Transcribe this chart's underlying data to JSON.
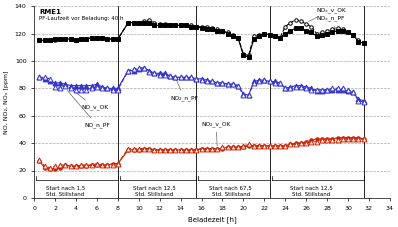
{
  "title": "RME1",
  "subtitle": "PF-Laufzeit vor Beladung: 40 h",
  "xlabel": "Beladezeit [h]",
  "ylabel": "NO, NO₂, NOₓ [ppm]",
  "xlim": [
    0,
    34
  ],
  "ylim": [
    0,
    140
  ],
  "yticks": [
    0,
    20,
    40,
    60,
    80,
    100,
    120,
    140
  ],
  "xticks": [
    0,
    2,
    4,
    6,
    8,
    10,
    12,
    14,
    16,
    18,
    20,
    22,
    24,
    26,
    28,
    30,
    32,
    34
  ],
  "NOx_v_OK_x": [
    0.5,
    1,
    1.5,
    2,
    2.5,
    3,
    3.5,
    4,
    4.5,
    5,
    5.5,
    6,
    6.5,
    7,
    7.5,
    8,
    9,
    9.5,
    10,
    10.5,
    11,
    11.5,
    12,
    12.5,
    13,
    13.5,
    14,
    14.5,
    15,
    15.5,
    16,
    16.5,
    17,
    17.5,
    18,
    18.5,
    19,
    19.5,
    20,
    20.5,
    21,
    21.5,
    22,
    22.5,
    23,
    23.5,
    24,
    24.5,
    25,
    25.5,
    26,
    26.5,
    27,
    27.5,
    28,
    28.5,
    29,
    29.5,
    30,
    30.5,
    31,
    31.5
  ],
  "NOx_v_OK_y": [
    115,
    115,
    115,
    115,
    116,
    116,
    116,
    115,
    116,
    116,
    117,
    117,
    117,
    116,
    116,
    116,
    128,
    128,
    128,
    129,
    130,
    128,
    127,
    127,
    126,
    126,
    126,
    126,
    126,
    125,
    125,
    125,
    124,
    123,
    122,
    121,
    119,
    117,
    105,
    104,
    118,
    119,
    120,
    119,
    118,
    117,
    125,
    128,
    130,
    129,
    127,
    125,
    120,
    121,
    122,
    123,
    124,
    123,
    121,
    119,
    115,
    113
  ],
  "NOx_n_PF_x": [
    0.5,
    1,
    1.5,
    2,
    2.5,
    3,
    3.5,
    4,
    4.5,
    5,
    5.5,
    6,
    6.5,
    7,
    7.5,
    8,
    9,
    9.5,
    10,
    10.5,
    11,
    11.5,
    12,
    12.5,
    13,
    13.5,
    14,
    14.5,
    15,
    15.5,
    16,
    16.5,
    17,
    17.5,
    18,
    18.5,
    19,
    19.5,
    20,
    20.5,
    21,
    21.5,
    22,
    22.5,
    23,
    23.5,
    24,
    24.5,
    25,
    25.5,
    26,
    26.5,
    27,
    27.5,
    28,
    28.5,
    29,
    29.5,
    30,
    30.5,
    31,
    31.5
  ],
  "NOx_n_PF_y": [
    115,
    115,
    115,
    116,
    116,
    116,
    116,
    115,
    116,
    116,
    117,
    117,
    117,
    116,
    116,
    116,
    128,
    128,
    128,
    128,
    128,
    126,
    126,
    126,
    126,
    126,
    126,
    126,
    125,
    125,
    124,
    123,
    123,
    122,
    122,
    120,
    118,
    117,
    104,
    103,
    116,
    118,
    120,
    119,
    118,
    117,
    120,
    122,
    124,
    124,
    122,
    121,
    118,
    119,
    120,
    121,
    122,
    122,
    121,
    119,
    114,
    113
  ],
  "NO_v_OK_x": [
    0.5,
    1,
    1.5,
    2,
    2.5,
    3,
    3.5,
    4,
    4.5,
    5,
    5.5,
    6,
    6.5,
    7,
    7.5,
    8,
    9,
    9.5,
    10,
    10.5,
    11,
    11.5,
    12,
    12.5,
    13,
    13.5,
    14,
    14.5,
    15,
    15.5,
    16,
    16.5,
    17,
    17.5,
    18,
    18.5,
    19,
    19.5,
    20,
    20.5,
    21,
    21.5,
    22,
    22.5,
    23,
    23.5,
    24,
    24.5,
    25,
    25.5,
    26,
    26.5,
    27,
    27.5,
    28,
    28.5,
    29,
    29.5,
    30,
    30.5,
    31,
    31.5
  ],
  "NO_v_OK_y": [
    88,
    87,
    85,
    84,
    84,
    83,
    82,
    82,
    82,
    82,
    82,
    83,
    81,
    80,
    80,
    80,
    93,
    93,
    94,
    95,
    93,
    91,
    91,
    91,
    89,
    88,
    88,
    88,
    88,
    87,
    87,
    86,
    85,
    84,
    84,
    83,
    83,
    82,
    76,
    75,
    85,
    86,
    86,
    85,
    85,
    84,
    80,
    81,
    82,
    82,
    81,
    80,
    78,
    78,
    79,
    79,
    79,
    79,
    78,
    77,
    72,
    71
  ],
  "NO_n_PF_x": [
    0.5,
    1,
    1.5,
    2,
    2.5,
    3,
    3.5,
    4,
    4.5,
    5,
    5.5,
    6,
    6.5,
    7,
    7.5,
    8,
    9,
    9.5,
    10,
    10.5,
    11,
    11.5,
    12,
    12.5,
    13,
    13.5,
    14,
    14.5,
    15,
    15.5,
    16,
    16.5,
    17,
    17.5,
    18,
    18.5,
    19,
    19.5,
    20,
    20.5,
    21,
    21.5,
    22,
    22.5,
    23,
    23.5,
    24,
    24.5,
    25,
    25.5,
    26,
    26.5,
    27,
    27.5,
    28,
    28.5,
    29,
    29.5,
    30,
    30.5,
    31,
    31.5
  ],
  "NO_n_PF_y": [
    88,
    88,
    87,
    81,
    80,
    82,
    80,
    79,
    79,
    79,
    80,
    81,
    80,
    80,
    79,
    79,
    93,
    94,
    95,
    95,
    92,
    91,
    90,
    90,
    89,
    88,
    88,
    88,
    88,
    87,
    86,
    85,
    85,
    84,
    84,
    83,
    83,
    82,
    75,
    75,
    84,
    85,
    86,
    85,
    84,
    84,
    80,
    80,
    81,
    81,
    80,
    79,
    79,
    79,
    79,
    80,
    80,
    80,
    79,
    77,
    71,
    70
  ],
  "NO2_v_OK_x": [
    0.5,
    1,
    1.5,
    2,
    2.5,
    3,
    3.5,
    4,
    4.5,
    5,
    5.5,
    6,
    6.5,
    7,
    7.5,
    8,
    9,
    9.5,
    10,
    10.5,
    11,
    11.5,
    12,
    12.5,
    13,
    13.5,
    14,
    14.5,
    15,
    15.5,
    16,
    16.5,
    17,
    17.5,
    18,
    18.5,
    19,
    19.5,
    20,
    20.5,
    21,
    21.5,
    22,
    22.5,
    23,
    23.5,
    24,
    24.5,
    25,
    25.5,
    26,
    26.5,
    27,
    27.5,
    28,
    28.5,
    29,
    29.5,
    30,
    30.5,
    31,
    31.5
  ],
  "NO2_v_OK_y": [
    27,
    22,
    21,
    21,
    22,
    24,
    23,
    23,
    23,
    23,
    24,
    24,
    24,
    24,
    25,
    25,
    35,
    35,
    35,
    36,
    36,
    35,
    35,
    35,
    35,
    35,
    35,
    35,
    35,
    35,
    36,
    36,
    36,
    36,
    36,
    37,
    37,
    37,
    37,
    38,
    38,
    38,
    38,
    38,
    38,
    38,
    38,
    39,
    40,
    40,
    41,
    42,
    43,
    43,
    43,
    43,
    44,
    44,
    44,
    44,
    44,
    43
  ],
  "NO2_n_PF_x": [
    0.5,
    1,
    1.5,
    2,
    2.5,
    3,
    3.5,
    4,
    4.5,
    5,
    5.5,
    6,
    6.5,
    7,
    7.5,
    8,
    9,
    9.5,
    10,
    10.5,
    11,
    11.5,
    12,
    12.5,
    13,
    13.5,
    14,
    14.5,
    15,
    15.5,
    16,
    16.5,
    17,
    17.5,
    18,
    18.5,
    19,
    19.5,
    20,
    20.5,
    21,
    21.5,
    22,
    22.5,
    23,
    23.5,
    24,
    24.5,
    25,
    25.5,
    26,
    26.5,
    27,
    27.5,
    28,
    28.5,
    29,
    29.5,
    30,
    30.5,
    31,
    31.5
  ],
  "NO2_n_PF_y": [
    28,
    23,
    22,
    23,
    24,
    24,
    23,
    23,
    24,
    24,
    24,
    25,
    24,
    24,
    24,
    25,
    36,
    36,
    36,
    36,
    36,
    35,
    35,
    35,
    35,
    35,
    35,
    35,
    35,
    35,
    36,
    36,
    36,
    36,
    37,
    37,
    37,
    37,
    38,
    39,
    38,
    38,
    38,
    38,
    38,
    38,
    38,
    39,
    39,
    40,
    40,
    41,
    41,
    42,
    42,
    42,
    42,
    43,
    43,
    43,
    43,
    43
  ],
  "vline_x": [
    8,
    15.5,
    22.5,
    31.5
  ],
  "color_black": "#000000",
  "color_blue": "#3333cc",
  "color_red": "#cc2200",
  "color_gray": "#888888",
  "bg_color": "#ffffff"
}
